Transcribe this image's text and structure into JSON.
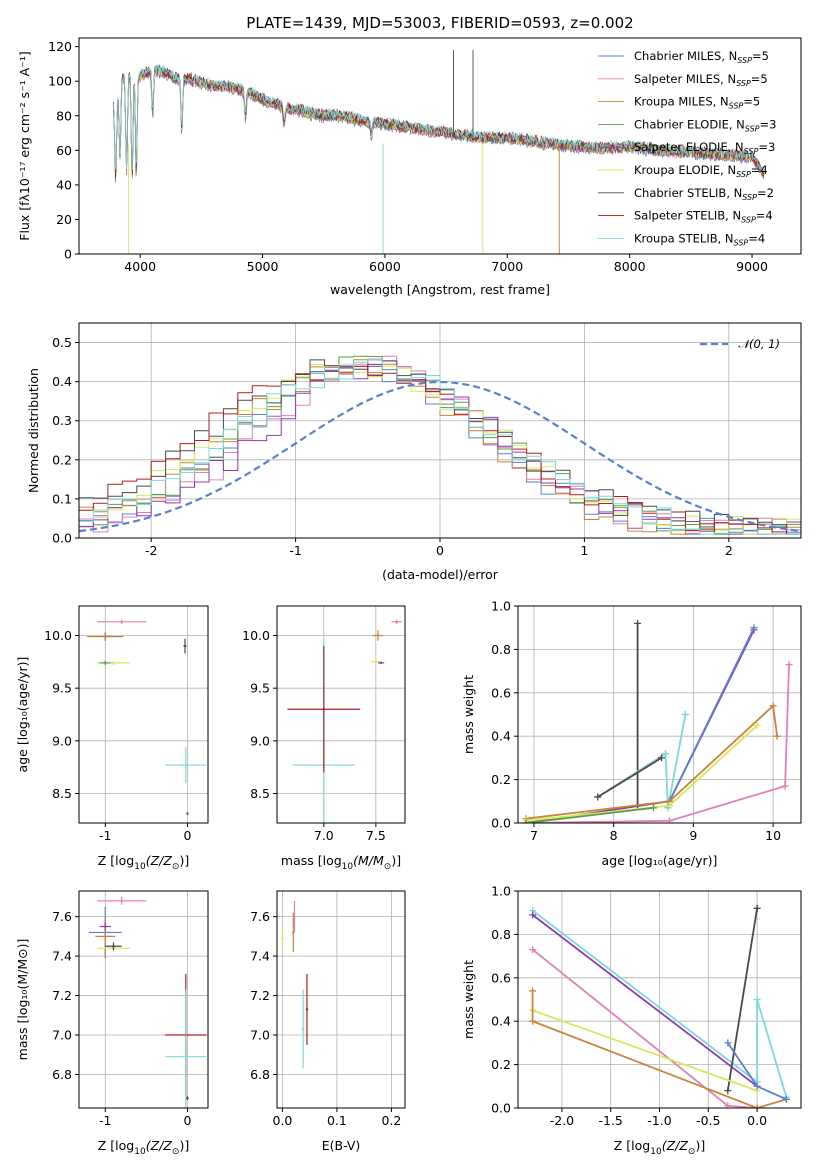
{
  "colors": {
    "Chabrier MILES": "#5b7fd4",
    "Salpeter MILES": "#e47eb8",
    "Kroupa MILES": "#c7843d",
    "Chabrier ELODIE": "#5a9e4e",
    "Salpeter ELODIE": "#8e3bb0",
    "Kroupa ELODIE": "#d5e95a",
    "Chabrier STELIB": "#4a4a4a",
    "Salpeter STELIB": "#b21e1e",
    "Kroupa STELIB": "#7dd8dc"
  },
  "chart_data": [
    {
      "id": "spectrum",
      "type": "line",
      "title": "PLATE=1439, MJD=53003, FIBERID=0593, z=0.002",
      "xlabel": "wavelength [Angstrom, rest frame]",
      "ylabel": "Flux [fλ10⁻¹⁷ erg cm⁻² s⁻¹ A⁻¹]",
      "xlim": [
        3500,
        9400
      ],
      "ylim": [
        0,
        125
      ],
      "xticks": [
        4000,
        5000,
        6000,
        7000,
        8000,
        9000
      ],
      "yticks": [
        0,
        20,
        40,
        60,
        80,
        100,
        120
      ],
      "legend_position": "top-right",
      "legend": [
        {
          "name": "Chabrier MILES",
          "label_main": "Chabrier MILES, N",
          "sub": "SSP",
          "suffix": "=5"
        },
        {
          "name": "Salpeter MILES",
          "label_main": "Salpeter MILES, N",
          "sub": "SSP",
          "suffix": "=5"
        },
        {
          "name": "Kroupa MILES",
          "label_main": "Kroupa MILES, N",
          "sub": "SSP",
          "suffix": "=5"
        },
        {
          "name": "Chabrier ELODIE",
          "label_main": "Chabrier ELODIE, N",
          "sub": "SSP",
          "suffix": "=3"
        },
        {
          "name": "Salpeter ELODIE",
          "label_main": "Salpeter ELODIE, N",
          "sub": "SSP",
          "suffix": "=3"
        },
        {
          "name": "Kroupa ELODIE",
          "label_main": "Kroupa ELODIE, N",
          "sub": "SSP",
          "suffix": "=4"
        },
        {
          "name": "Chabrier STELIB",
          "label_main": "Chabrier STELIB, N",
          "sub": "SSP",
          "suffix": "=2"
        },
        {
          "name": "Salpeter STELIB",
          "label_main": "Salpeter STELIB, N",
          "sub": "SSP",
          "suffix": "=4"
        },
        {
          "name": "Kroupa STELIB",
          "label_main": "Kroupa STELIB, N",
          "sub": "SSP",
          "suffix": "=4"
        }
      ],
      "continuum": {
        "x": [
          3790,
          3850,
          3900,
          3950,
          4000,
          4100,
          4200,
          4300,
          4400,
          4500,
          4600,
          4700,
          4800,
          4900,
          5000,
          5100,
          5200,
          5300,
          5400,
          5500,
          5600,
          5700,
          5800,
          5900,
          6000,
          6200,
          6400,
          6600,
          6800,
          7000,
          7200,
          7400,
          7600,
          7800,
          8000,
          8200,
          8400,
          8600,
          8800,
          9000,
          9100
        ],
        "y": [
          85,
          100,
          103,
          104,
          102,
          105,
          104,
          100,
          100,
          98,
          96,
          96,
          94,
          92,
          88,
          86,
          83,
          82,
          80,
          79,
          79,
          78,
          76,
          75,
          74,
          72,
          70,
          68,
          66,
          66,
          64,
          62,
          61,
          60,
          61,
          59,
          58,
          57,
          56,
          55,
          45
        ]
      },
      "absorption_dips": [
        {
          "x": 3800,
          "depth": 45
        },
        {
          "x": 3835,
          "depth": 40
        },
        {
          "x": 3889,
          "depth": 55
        },
        {
          "x": 3934,
          "depth": 60
        },
        {
          "x": 3968,
          "depth": 58
        },
        {
          "x": 4102,
          "depth": 25
        },
        {
          "x": 4340,
          "depth": 30
        },
        {
          "x": 4861,
          "depth": 15
        },
        {
          "x": 5175,
          "depth": 8
        },
        {
          "x": 5890,
          "depth": 8
        }
      ]
    },
    {
      "id": "residuals",
      "type": "step",
      "xlabel": "(data-model)/error",
      "ylabel": "Normed distribution",
      "xlim": [
        -2.5,
        2.5
      ],
      "ylim": [
        0,
        0.55
      ],
      "xticks": [
        -2,
        -1,
        0,
        1,
        2
      ],
      "yticks": [
        0.0,
        0.1,
        0.2,
        0.3,
        0.4,
        0.5
      ],
      "legend_position": "top-right",
      "legend": [
        {
          "name": "𝒩(0, 1)",
          "style": "dashed",
          "color": "#5b7fd4"
        }
      ],
      "gaussian": {
        "mu": 0,
        "sigma": 1,
        "color": "#5b7fd4"
      },
      "bin_width": 0.1,
      "series": [
        {
          "name": "Chabrier MILES",
          "mu": -0.55,
          "sigma": 0.8
        },
        {
          "name": "Salpeter MILES",
          "mu": -0.45,
          "sigma": 0.78
        },
        {
          "name": "Kroupa MILES",
          "mu": -0.6,
          "sigma": 0.82
        },
        {
          "name": "Chabrier ELODIE",
          "mu": -0.5,
          "sigma": 0.85
        },
        {
          "name": "Salpeter ELODIE",
          "mu": -0.4,
          "sigma": 0.8
        },
        {
          "name": "Kroupa ELODIE",
          "mu": -0.55,
          "sigma": 0.9
        },
        {
          "name": "Chabrier STELIB",
          "mu": -0.6,
          "sigma": 0.95
        },
        {
          "name": "Salpeter STELIB",
          "mu": -0.65,
          "sigma": 0.98
        },
        {
          "name": "Kroupa STELIB",
          "mu": -0.5,
          "sigma": 0.88
        }
      ]
    },
    {
      "id": "age_vs_Z",
      "type": "errorbar",
      "xlabel_main": "Z [log",
      "xlabel_sub": "10",
      "xlabel_rest": "(Z/Z",
      "xlabel_sun": "⊙",
      "xlabel_end": ")]",
      "ylabel": "age  [log₁₀(age/yr)]",
      "xlim": [
        -1.32,
        0.25
      ],
      "ylim": [
        8.22,
        10.28
      ],
      "xticks": [
        -1,
        0
      ],
      "yticks": [
        8.5,
        9.0,
        9.5,
        10.0
      ],
      "points": [
        {
          "series": "Kroupa STELIB",
          "x": -0.02,
          "y": 8.77,
          "xerr": 0.25,
          "yerr": 0.17
        },
        {
          "series": "Chabrier MILES",
          "x": -1.0,
          "y": 9.99,
          "xerr": 0.2,
          "yerr": 0.04
        },
        {
          "series": "Kroupa MILES",
          "x": -1.0,
          "y": 9.99,
          "xerr": 0.22,
          "yerr": 0.04
        },
        {
          "series": "Salpeter MILES",
          "x": -0.8,
          "y": 10.13,
          "xerr": 0.3,
          "yerr": 0.02
        },
        {
          "series": "Kroupa ELODIE",
          "x": -0.9,
          "y": 9.74,
          "xerr": 0.2,
          "yerr": 0.02
        },
        {
          "series": "Chabrier ELODIE",
          "x": -1.0,
          "y": 9.74,
          "xerr": 0.07,
          "yerr": 0.02
        },
        {
          "series": "Chabrier STELIB",
          "x": -0.03,
          "y": 9.9,
          "xerr": 0.02,
          "yerr": 0.07
        },
        {
          "series": "Chabrier STELIB",
          "x": 0.0,
          "y": 8.31,
          "xerr": 0.01,
          "yerr": 0.01
        }
      ]
    },
    {
      "id": "age_vs_mass",
      "type": "errorbar",
      "xlabel_main": "mass [log",
      "xlabel_sub": "10",
      "xlabel_rest": "(M/M",
      "xlabel_sun": "⊙",
      "xlabel_end": ")]",
      "ylabel": "",
      "xlim": [
        6.55,
        7.78
      ],
      "ylim": [
        8.22,
        10.28
      ],
      "xticks": [
        7.0,
        7.5
      ],
      "yticks": [
        8.5,
        9.0,
        9.5,
        10.0
      ],
      "points": [
        {
          "series": "Kroupa STELIB",
          "x": 7.0,
          "y": 8.77,
          "xerr": 0.3,
          "yerr": 1.18
        },
        {
          "series": "Salpeter STELIB",
          "x": 7.0,
          "y": 9.3,
          "xerr": 0.35,
          "yerr": 0.6
        },
        {
          "series": "Kroupa MILES",
          "x": 7.52,
          "y": 10.0,
          "xerr": 0.05,
          "yerr": 0.05
        },
        {
          "series": "Salpeter MILES",
          "x": 7.7,
          "y": 10.13,
          "xerr": 0.05,
          "yerr": 0.02
        },
        {
          "series": "Kroupa ELODIE",
          "x": 7.5,
          "y": 9.75,
          "xerr": 0.05,
          "yerr": 0.02
        },
        {
          "series": "Salpeter ELODIE",
          "x": 7.55,
          "y": 9.74,
          "xerr": 0.03,
          "yerr": 0.01
        }
      ]
    },
    {
      "id": "mw_vs_age",
      "type": "line",
      "xlabel": "age  [log₁₀(age/yr)]",
      "ylabel": "mass weight",
      "xlim": [
        6.8,
        10.35
      ],
      "ylim": [
        0,
        1.0
      ],
      "xticks": [
        7,
        8,
        9,
        10
      ],
      "yticks": [
        0.0,
        0.2,
        0.4,
        0.6,
        0.8,
        1.0
      ],
      "series": [
        {
          "name": "Chabrier STELIB",
          "x": [
            8.3,
            8.3
          ],
          "y": [
            0.08,
            0.92
          ]
        },
        {
          "name": "Kroupa STELIB",
          "x": [
            7.8,
            8.65,
            8.68,
            8.9,
            8.9,
            8.68
          ],
          "y": [
            0.12,
            0.32,
            0.07,
            0.5,
            0.5,
            0.07
          ]
        },
        {
          "name": "Salpeter ELODIE",
          "x": [
            6.9,
            8.7,
            9.76
          ],
          "y": [
            0.0,
            0.1,
            0.89
          ]
        },
        {
          "name": "Chabrier MILES",
          "x": [
            8.7,
            9.76
          ],
          "y": [
            0.1,
            0.9
          ]
        },
        {
          "name": "Kroupa MILES",
          "x": [
            6.9,
            8.7,
            10.0,
            10.05
          ],
          "y": [
            0.02,
            0.1,
            0.54,
            0.4
          ]
        },
        {
          "name": "Kroupa ELODIE",
          "x": [
            6.9,
            8.7,
            9.8
          ],
          "y": [
            0.01,
            0.08,
            0.45
          ]
        },
        {
          "name": "Salpeter MILES",
          "x": [
            6.9,
            8.7,
            10.15,
            10.2
          ],
          "y": [
            0.0,
            0.01,
            0.17,
            0.73
          ]
        },
        {
          "name": "Chabrier ELODIE",
          "x": [
            6.9,
            8.5
          ],
          "y": [
            0.0,
            0.07
          ]
        },
        {
          "name": "Chabrier STELIB",
          "x": [
            7.8,
            8.6
          ],
          "y": [
            0.12,
            0.3
          ]
        }
      ]
    },
    {
      "id": "mass_vs_Z",
      "type": "errorbar",
      "xlabel_main": "Z [log",
      "xlabel_sub": "10",
      "xlabel_rest": "(Z/Z",
      "xlabel_sun": "⊙",
      "xlabel_end": ")]",
      "ylabel": "mass [log₁₀(M/M⊙)]",
      "xlim": [
        -1.32,
        0.25
      ],
      "ylim": [
        6.63,
        7.73
      ],
      "xticks": [
        -1,
        0
      ],
      "yticks": [
        6.8,
        7.0,
        7.2,
        7.4,
        7.6
      ],
      "points": [
        {
          "series": "Chabrier MILES",
          "x": -1.0,
          "y": 7.52,
          "xerr": 0.2,
          "yerr": 0.13
        },
        {
          "series": "Salpeter MILES",
          "x": -0.8,
          "y": 7.68,
          "xerr": 0.3,
          "yerr": 0.02
        },
        {
          "series": "Kroupa MILES",
          "x": -1.0,
          "y": 7.5,
          "xerr": 0.12,
          "yerr": 0.1
        },
        {
          "series": "Kroupa ELODIE",
          "x": -0.9,
          "y": 7.44,
          "xerr": 0.2,
          "yerr": 0.02
        },
        {
          "series": "Salpeter ELODIE",
          "x": -1.0,
          "y": 7.55,
          "xerr": 0.07,
          "yerr": 0.02
        },
        {
          "series": "Chabrier STELIB",
          "x": -0.9,
          "y": 7.45,
          "xerr": 0.1,
          "yerr": 0.02
        },
        {
          "series": "Salpeter STELIB",
          "x": -0.02,
          "y": 7.0,
          "xerr": 0.25,
          "yerr": 0.31
        },
        {
          "series": "Kroupa STELIB",
          "x": -0.02,
          "y": 6.89,
          "xerr": 0.25,
          "yerr": 0.34
        },
        {
          "series": "Chabrier STELIB",
          "x": 0.0,
          "y": 6.68,
          "xerr": 0.01,
          "yerr": 0.01
        }
      ]
    },
    {
      "id": "mass_vs_EBV",
      "type": "errorbar",
      "xlabel": "E(B-V)",
      "ylabel": "",
      "xlim": [
        -0.01,
        0.225
      ],
      "ylim": [
        6.63,
        7.73
      ],
      "xticks": [
        0.0,
        0.1,
        0.2
      ],
      "yticks": [
        6.8,
        7.0,
        7.2,
        7.4,
        7.6
      ],
      "points": [
        {
          "series": "Kroupa ELODIE",
          "x": 0.0,
          "y": 7.49,
          "xerr": 0,
          "yerr": 0.05
        },
        {
          "series": "Kroupa MILES",
          "x": 0.02,
          "y": 7.52,
          "xerr": 0,
          "yerr": 0.1
        },
        {
          "series": "Salpeter MILES",
          "x": 0.022,
          "y": 7.6,
          "xerr": 0,
          "yerr": 0.08
        },
        {
          "series": "Kroupa STELIB",
          "x": 0.038,
          "y": 7.03,
          "xerr": 0,
          "yerr": 0.2
        },
        {
          "series": "Salpeter STELIB",
          "x": 0.045,
          "y": 7.13,
          "xerr": 0,
          "yerr": 0.18
        }
      ]
    },
    {
      "id": "mw_vs_Z",
      "type": "line",
      "xlabel_main": "Z [log",
      "xlabel_sub": "10",
      "xlabel_rest": "(Z/Z",
      "xlabel_sun": "⊙",
      "xlabel_end": ")]",
      "ylabel": "mass weight",
      "xlim": [
        -2.45,
        0.45
      ],
      "ylim": [
        0,
        1.0
      ],
      "xticks": [
        -2.0,
        -1.5,
        -1.0,
        -0.5,
        0.0
      ],
      "yticks": [
        0.0,
        0.2,
        0.4,
        0.6,
        0.8,
        1.0
      ],
      "series": [
        {
          "name": "Kroupa STELIB",
          "x": [
            -2.3,
            0.0,
            0.0,
            0.3
          ],
          "y": [
            0.91,
            0.12,
            0.5,
            0.05
          ]
        },
        {
          "name": "Salpeter ELODIE",
          "x": [
            -2.3,
            0.0
          ],
          "y": [
            0.89,
            0.1
          ]
        },
        {
          "name": "Chabrier STELIB",
          "x": [
            -0.3,
            0.0,
            0.0
          ],
          "y": [
            0.08,
            0.92,
            0.92
          ]
        },
        {
          "name": "Salpeter MILES",
          "x": [
            -2.3,
            -0.3,
            0.0
          ],
          "y": [
            0.73,
            0.01,
            0.0
          ]
        },
        {
          "name": "Kroupa ELODIE",
          "x": [
            -2.3,
            0.0
          ],
          "y": [
            0.45,
            0.08
          ]
        },
        {
          "name": "Kroupa MILES",
          "x": [
            -2.3,
            -2.3,
            0.0,
            0.3
          ],
          "y": [
            0.54,
            0.4,
            0.0,
            0.04
          ]
        },
        {
          "name": "Chabrier MILES",
          "x": [
            -0.3,
            0.0,
            0.3
          ],
          "y": [
            0.3,
            0.1,
            0.04
          ]
        }
      ]
    }
  ]
}
